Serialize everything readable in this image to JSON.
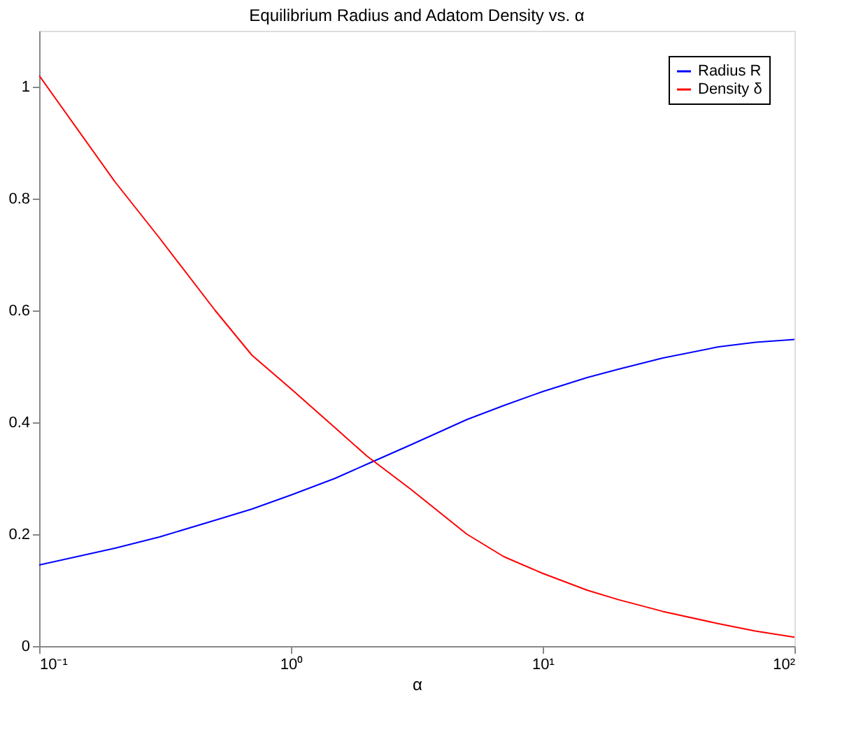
{
  "chart_data": {
    "type": "line",
    "title": "Equilibrium Radius and Adatom Density vs. α",
    "xlabel": "α",
    "x": [
      0.1,
      0.2,
      0.3,
      0.5,
      0.7,
      1,
      1.5,
      2,
      3,
      5,
      7,
      10,
      15,
      20,
      30,
      50,
      70,
      100
    ],
    "series": [
      {
        "name": "Radius R",
        "color": "#0000ff",
        "values": [
          0.145,
          0.175,
          0.195,
          0.225,
          0.245,
          0.27,
          0.3,
          0.325,
          0.36,
          0.405,
          0.43,
          0.455,
          0.48,
          0.495,
          0.515,
          0.535,
          0.543,
          0.548
        ]
      },
      {
        "name": "Density δ",
        "color": "#ff0000",
        "values": [
          1.02,
          0.83,
          0.73,
          0.6,
          0.52,
          0.46,
          0.39,
          0.34,
          0.28,
          0.2,
          0.16,
          0.13,
          0.1,
          0.083,
          0.062,
          0.04,
          0.027,
          0.016
        ]
      }
    ],
    "log": "x",
    "xlim": [
      0.1,
      100
    ],
    "xticks": [
      {
        "value": 0.1,
        "label": "10⁻¹"
      },
      {
        "value": 1,
        "label": "10⁰"
      },
      {
        "value": 10,
        "label": "10¹"
      },
      {
        "value": 100,
        "label": "10²"
      }
    ],
    "ylim": [
      0,
      1.1
    ],
    "yticks": [
      0,
      0.2,
      0.4,
      0.6,
      0.8,
      1
    ],
    "grid": false,
    "legend": "top right"
  }
}
